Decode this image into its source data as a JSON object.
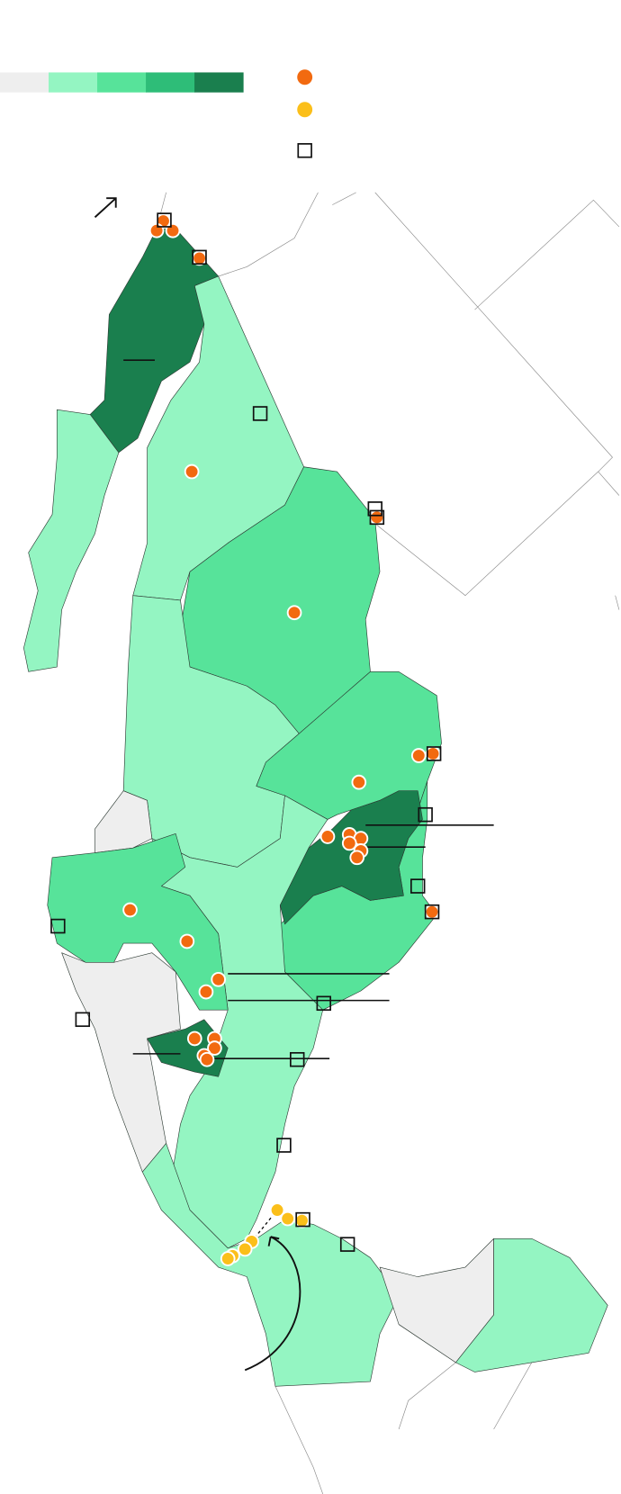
{
  "legend": {
    "scale_colors": [
      "#eeeeee",
      "#94f5c2",
      "#57e39a",
      "#2ebd78",
      "#1a7f4e"
    ],
    "marker_colors": [
      "#f26a10",
      "#fbbf1a"
    ]
  }
}
